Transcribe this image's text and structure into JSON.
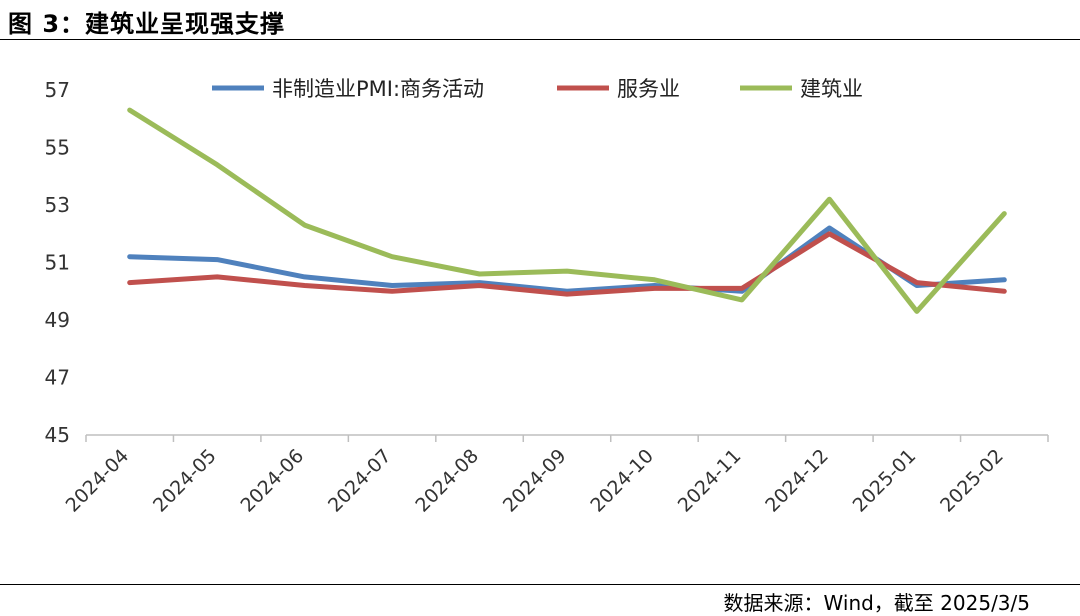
{
  "figure": {
    "title": "图 3：建筑业呈现强支撑",
    "source": "数据来源：Wind，截至 2025/3/5"
  },
  "chart_data": {
    "type": "line",
    "categories": [
      "2024-04",
      "2024-05",
      "2024-06",
      "2024-07",
      "2024-08",
      "2024-09",
      "2024-10",
      "2024-11",
      "2024-12",
      "2025-01",
      "2025-02"
    ],
    "series": [
      {
        "name": "非制造业PMI:商务活动",
        "color": "#4f81bd",
        "values": [
          51.2,
          51.1,
          50.5,
          50.2,
          50.3,
          50.0,
          50.2,
          50.0,
          52.2,
          50.2,
          50.4
        ]
      },
      {
        "name": "服务业",
        "color": "#c0504d",
        "values": [
          50.3,
          50.5,
          50.2,
          50.0,
          50.2,
          49.9,
          50.1,
          50.1,
          52.0,
          50.3,
          50.0
        ]
      },
      {
        "name": "建筑业",
        "color": "#9bbb59",
        "values": [
          56.3,
          54.4,
          52.3,
          51.2,
          50.6,
          50.7,
          50.4,
          49.7,
          53.2,
          49.3,
          52.7
        ]
      }
    ],
    "y_ticks": [
      "45",
      "47",
      "49",
      "51",
      "53",
      "55",
      "57"
    ],
    "ylim": [
      45,
      57
    ],
    "legend_position": "top",
    "grid": false
  }
}
